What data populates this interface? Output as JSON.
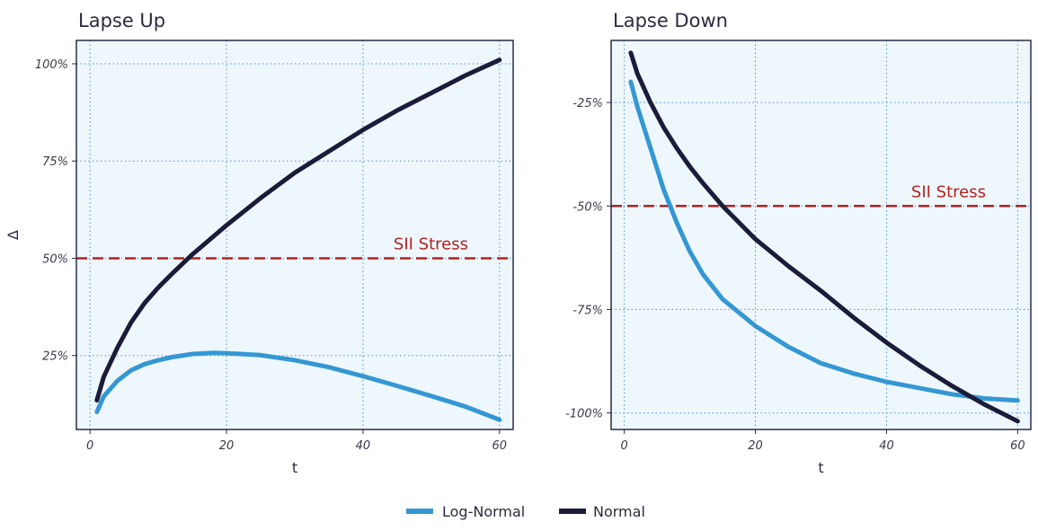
{
  "chart_data": [
    {
      "type": "line",
      "title": "Lapse Up",
      "xlabel": "t",
      "ylabel": "Δ",
      "xlim": [
        -2,
        62
      ],
      "ylim": [
        0.06,
        1.06
      ],
      "x_ticks": [
        0,
        20,
        40,
        60
      ],
      "y_ticks": [
        0.25,
        0.5,
        0.75,
        1.0
      ],
      "y_tick_labels": [
        "25%",
        "50%",
        "75%",
        "100%"
      ],
      "grid": true,
      "series": [
        {
          "name": "Log-Normal",
          "x": [
            1,
            2,
            4,
            6,
            8,
            10,
            12,
            15,
            18,
            20,
            25,
            30,
            35,
            40,
            45,
            50,
            55,
            60
          ],
          "y": [
            0.105,
            0.145,
            0.185,
            0.212,
            0.228,
            0.238,
            0.246,
            0.254,
            0.257,
            0.256,
            0.251,
            0.238,
            0.22,
            0.197,
            0.172,
            0.146,
            0.119,
            0.085
          ]
        },
        {
          "name": "Normal",
          "x": [
            1,
            2,
            4,
            6,
            8,
            10,
            12,
            15,
            20,
            25,
            30,
            35,
            40,
            45,
            50,
            55,
            60
          ],
          "y": [
            0.135,
            0.195,
            0.27,
            0.335,
            0.385,
            0.425,
            0.46,
            0.51,
            0.585,
            0.655,
            0.72,
            0.775,
            0.83,
            0.88,
            0.925,
            0.97,
            1.01
          ]
        }
      ],
      "reference_line": {
        "y": 0.5,
        "label": "SII Stress",
        "color": "#b22222"
      }
    },
    {
      "type": "line",
      "title": "Lapse Down",
      "xlabel": "t",
      "ylabel": "",
      "xlim": [
        -2,
        62
      ],
      "ylim": [
        -1.04,
        -0.1
      ],
      "x_ticks": [
        0,
        20,
        40,
        60
      ],
      "y_ticks": [
        -1.0,
        -0.75,
        -0.5,
        -0.25
      ],
      "y_tick_labels": [
        "-100%",
        "-75%",
        "-50%",
        "-25%"
      ],
      "grid": true,
      "series": [
        {
          "name": "Log-Normal",
          "x": [
            1,
            2,
            3,
            4,
            6,
            8,
            10,
            12,
            15,
            20,
            25,
            30,
            35,
            40,
            45,
            50,
            55,
            60
          ],
          "y": [
            -0.2,
            -0.26,
            -0.31,
            -0.36,
            -0.46,
            -0.54,
            -0.61,
            -0.665,
            -0.725,
            -0.79,
            -0.84,
            -0.88,
            -0.905,
            -0.925,
            -0.94,
            -0.955,
            -0.965,
            -0.97
          ]
        },
        {
          "name": "Normal",
          "x": [
            1,
            2,
            4,
            6,
            8,
            10,
            12,
            15,
            20,
            25,
            30,
            35,
            40,
            45,
            50,
            55,
            60
          ],
          "y": [
            -0.13,
            -0.18,
            -0.25,
            -0.31,
            -0.36,
            -0.405,
            -0.445,
            -0.5,
            -0.58,
            -0.645,
            -0.705,
            -0.77,
            -0.83,
            -0.885,
            -0.935,
            -0.98,
            -1.02
          ]
        }
      ],
      "reference_line": {
        "y": -0.5,
        "label": "SII Stress",
        "color": "#b22222"
      }
    }
  ],
  "legend": {
    "placement": "bottom-center",
    "entries": [
      {
        "label": "Log-Normal",
        "color": "#3497d3"
      },
      {
        "label": "Normal",
        "color": "#1b1b3a"
      }
    ]
  },
  "colors": {
    "panel_bg": "#eef7fc",
    "border": "#2b2b4a",
    "grid": "#4a90d9",
    "reference": "#b22222",
    "log_normal": "#3497d3",
    "normal": "#1b1b3a"
  }
}
